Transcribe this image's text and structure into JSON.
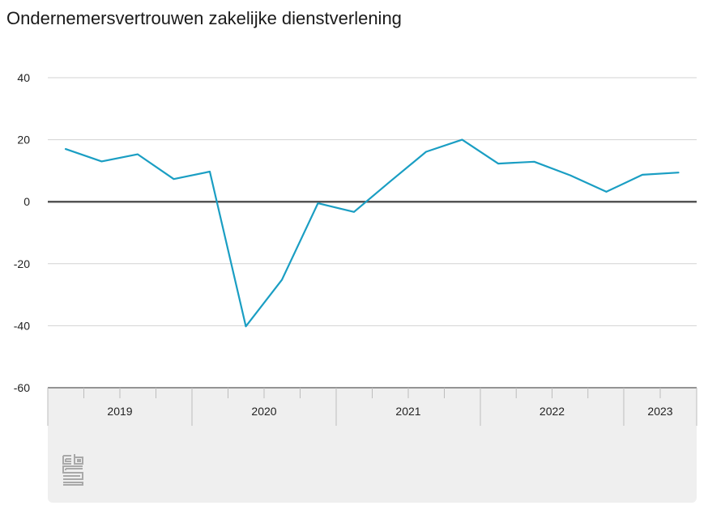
{
  "title": "Ondernemersvertrouwen zakelijke dienstverlening",
  "colors": {
    "line": "#1a9ec3",
    "zero_line": "#555555",
    "grid": "#d3d3d3",
    "footer_bg": "#efefef",
    "logo": "#a9a9a9"
  },
  "logo_icon": "cbs-logo-icon",
  "chart_data": {
    "type": "line",
    "title": "Ondernemersvertrouwen zakelijke dienstverlening",
    "xlabel": "",
    "ylabel": "",
    "ylim": [
      -60,
      40
    ],
    "yticks": [
      40,
      20,
      0,
      -20,
      -40,
      -60
    ],
    "grid": true,
    "legend": "none",
    "x": [
      "2019 Q1",
      "2019 Q2",
      "2019 Q3",
      "2019 Q4",
      "2020 Q1",
      "2020 Q2",
      "2020 Q3",
      "2020 Q4",
      "2021 Q1",
      "2021 Q2",
      "2021 Q3",
      "2021 Q4",
      "2022 Q1",
      "2022 Q2",
      "2022 Q3",
      "2022 Q4",
      "2023 Q1",
      "2023 Q2"
    ],
    "year_labels": [
      {
        "label": "2019",
        "quarters": 4
      },
      {
        "label": "2020",
        "quarters": 4
      },
      {
        "label": "2021",
        "quarters": 4
      },
      {
        "label": "2022",
        "quarters": 4
      },
      {
        "label": "2023",
        "quarters": 2
      }
    ],
    "series": [
      {
        "values": [
          17,
          13,
          15.3,
          7.3,
          9.7,
          -40.2,
          -25.2,
          -0.5,
          -3.3,
          6.5,
          16.1,
          20,
          12.3,
          12.9,
          8.5,
          3.2,
          8.7,
          9.4
        ]
      }
    ]
  }
}
